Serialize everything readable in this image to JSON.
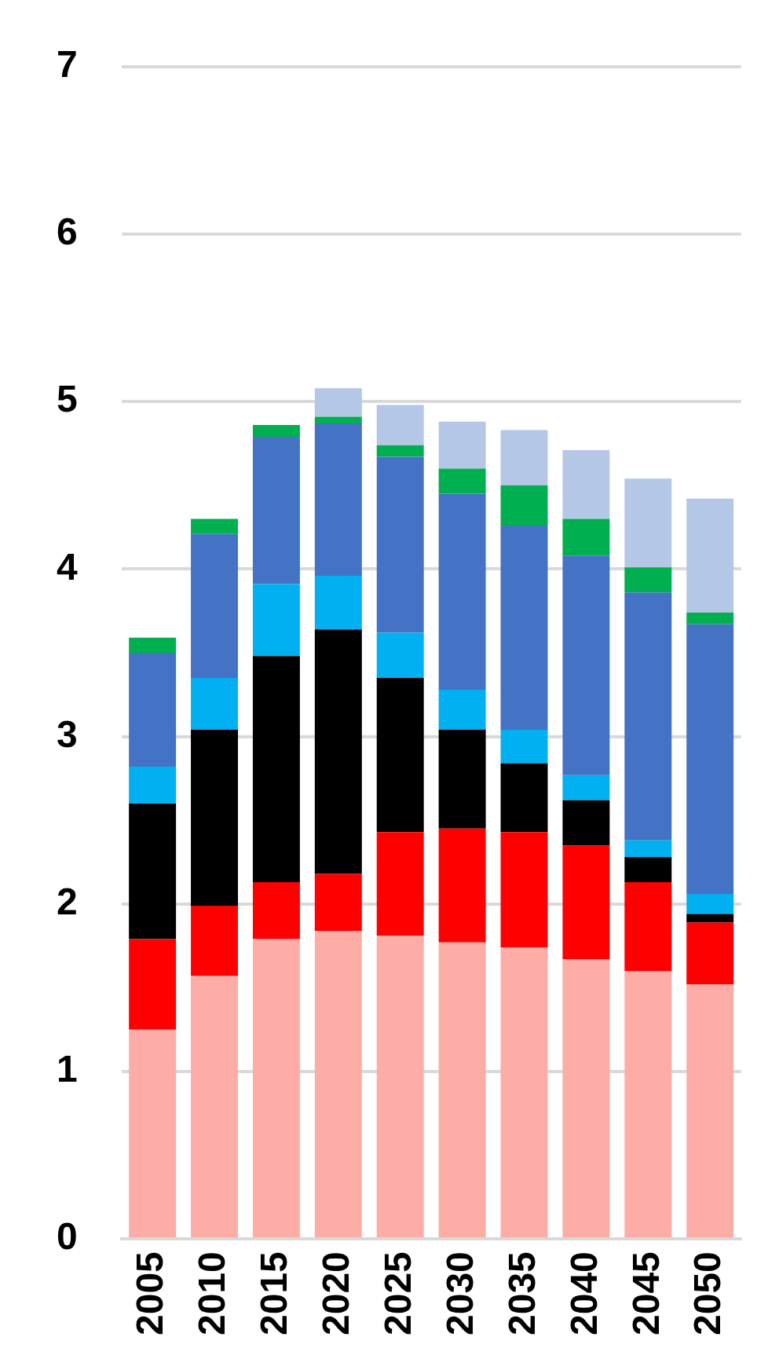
{
  "chart_data": {
    "type": "bar",
    "stacked": true,
    "categories": [
      "2005",
      "2010",
      "2015",
      "2020",
      "2025",
      "2030",
      "2035",
      "2040",
      "2045",
      "2050"
    ],
    "series": [
      {
        "color": "#fdaca6",
        "values": [
          1.25,
          1.57,
          1.79,
          1.84,
          1.81,
          1.77,
          1.74,
          1.67,
          1.6,
          1.52
        ]
      },
      {
        "color": "#ff0000",
        "values": [
          0.54,
          0.42,
          0.34,
          0.34,
          0.62,
          0.68,
          0.69,
          0.68,
          0.53,
          0.37
        ]
      },
      {
        "color": "#000000",
        "values": [
          0.81,
          1.05,
          1.35,
          1.46,
          0.92,
          0.59,
          0.41,
          0.27,
          0.15,
          0.05
        ]
      },
      {
        "color": "#00b0f0",
        "values": [
          0.22,
          0.31,
          0.43,
          0.32,
          0.27,
          0.24,
          0.2,
          0.15,
          0.1,
          0.12
        ]
      },
      {
        "color": "#4472c4",
        "values": [
          0.68,
          0.86,
          0.88,
          0.91,
          1.05,
          1.17,
          1.22,
          1.31,
          1.48,
          1.61
        ]
      },
      {
        "color": "#00b050",
        "values": [
          0.09,
          0.09,
          0.07,
          0.04,
          0.07,
          0.15,
          0.24,
          0.22,
          0.15,
          0.07
        ]
      },
      {
        "color": "#b4c7e7",
        "values": [
          null,
          null,
          null,
          0.17,
          0.24,
          0.28,
          0.33,
          0.41,
          0.53,
          0.68
        ]
      }
    ],
    "ylim": [
      0,
      7
    ],
    "yticks": [
      0,
      1,
      2,
      3,
      4,
      5,
      6,
      7
    ],
    "grid": "y",
    "legend": false
  }
}
